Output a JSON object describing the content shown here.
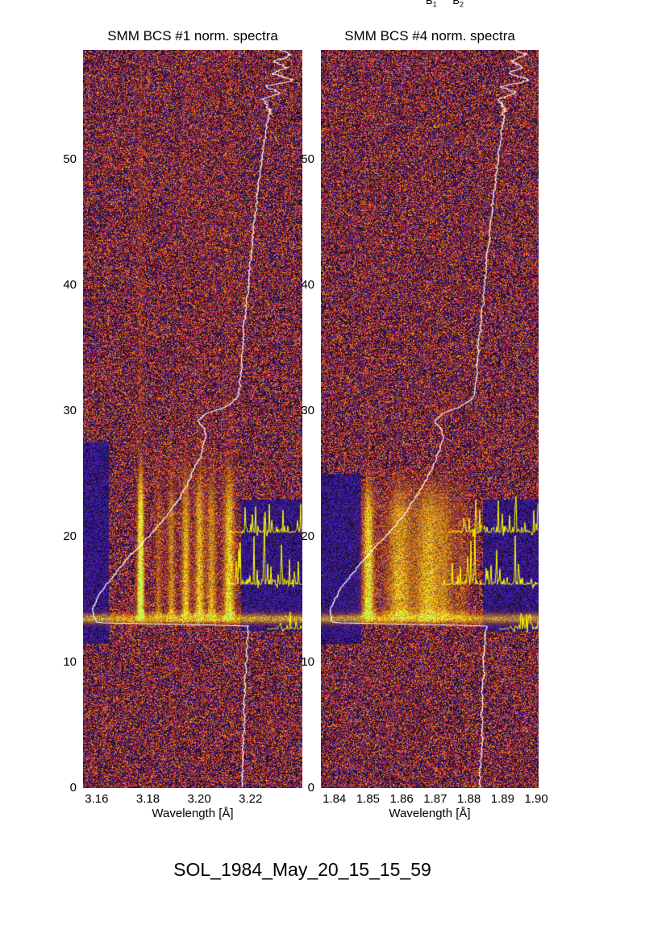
{
  "figure": {
    "caption": "SOL_1984_May_20_15_15_59",
    "top_labels": [
      {
        "base": "B",
        "sub": "1"
      },
      {
        "base": "B",
        "sub": "2"
      }
    ]
  },
  "chart_data": [
    {
      "type": "heatmap",
      "title": "SMM BCS #1 norm. spectra",
      "xlabel": "Wavelength [Å]",
      "xlim": [
        3.1547,
        3.2402
      ],
      "xticks": [
        {
          "label": "3.16",
          "value": 3.16
        },
        {
          "label": "3.18",
          "value": 3.18
        },
        {
          "label": "3.20",
          "value": 3.2
        },
        {
          "label": "3.22",
          "value": 3.22
        }
      ],
      "ylim": [
        0,
        58.7
      ],
      "yticks": [
        0,
        10,
        20,
        30,
        40,
        50
      ],
      "colormap": {
        "background_levels": [
          "#000012",
          "#2a1ea8",
          "#c03020",
          "#ff8c14"
        ],
        "line_core": "#aaff55",
        "lightcurve_overlay": "#ffffff",
        "spectra_overlay": "#ffff00"
      },
      "flare": {
        "onset_time": 13.1,
        "peak_time": 14.0,
        "decay_end_time": 28,
        "band_time_range": [
          13.1,
          13.9
        ],
        "band_strength": 0.7
      },
      "emission_lines": [
        {
          "wavelength": 3.177,
          "width": 0.0013,
          "strength": 1.35,
          "persist": 0.14
        },
        {
          "wavelength": 3.184,
          "width": 0.0013,
          "strength": 0.4,
          "persist": 0.05
        },
        {
          "wavelength": 3.189,
          "width": 0.0015,
          "strength": 0.55,
          "persist": 0.07
        },
        {
          "wavelength": 3.1946,
          "width": 0.0016,
          "strength": 0.75,
          "persist": 0.09
        },
        {
          "wavelength": 3.2,
          "width": 0.0018,
          "strength": 0.78,
          "persist": 0.09
        },
        {
          "wavelength": 3.2047,
          "width": 0.0018,
          "strength": 0.65,
          "persist": 0.07
        },
        {
          "wavelength": 3.2115,
          "width": 0.0022,
          "strength": 0.95,
          "persist": 0.1
        },
        {
          "wavelength": 3.196,
          "width": 0.016,
          "strength": 0.1,
          "persist": 0
        }
      ],
      "blue_regions": [
        {
          "lam": [
            3.1547,
            3.1645
          ],
          "t": [
            11.5,
            27.5
          ]
        },
        {
          "lam": [
            3.216,
            3.2402
          ],
          "t": [
            12.5,
            23.0
          ]
        }
      ],
      "lightcurve_trace": {
        "points": [
          [
            0,
            0.725
          ],
          [
            3,
            0.73
          ],
          [
            6,
            0.735
          ],
          [
            9,
            0.74
          ],
          [
            12,
            0.75
          ],
          [
            12.9,
            0.755
          ],
          [
            13.15,
            0.06
          ],
          [
            14.2,
            0.045
          ],
          [
            15,
            0.065
          ],
          [
            16,
            0.1
          ],
          [
            17,
            0.145
          ],
          [
            18,
            0.19
          ],
          [
            19,
            0.245
          ],
          [
            20,
            0.3
          ],
          [
            21,
            0.35
          ],
          [
            22,
            0.4
          ],
          [
            23,
            0.435
          ],
          [
            24,
            0.47
          ],
          [
            25,
            0.5
          ],
          [
            26,
            0.525
          ],
          [
            27,
            0.548
          ],
          [
            28,
            0.562
          ],
          [
            28.6,
            0.555
          ],
          [
            29.2,
            0.528
          ],
          [
            29.8,
            0.56
          ],
          [
            30.3,
            0.645
          ],
          [
            31,
            0.7
          ],
          [
            32,
            0.715
          ],
          [
            34,
            0.722
          ],
          [
            36,
            0.73
          ],
          [
            38,
            0.742
          ],
          [
            40,
            0.754
          ],
          [
            42,
            0.764
          ],
          [
            44,
            0.776
          ],
          [
            46,
            0.788
          ],
          [
            48,
            0.8
          ],
          [
            50,
            0.815
          ],
          [
            52,
            0.832
          ],
          [
            54,
            0.85
          ],
          [
            54.8,
            0.82
          ],
          [
            55.3,
            0.9
          ],
          [
            55.8,
            0.83
          ],
          [
            56.3,
            0.96
          ],
          [
            56.8,
            0.86
          ],
          [
            57.3,
            0.93
          ],
          [
            57.8,
            0.87
          ],
          [
            58.3,
            0.95
          ],
          [
            58.7,
            0.9
          ]
        ]
      },
      "spectra_traces": {
        "baselines": [
          {
            "t": 12.65,
            "x_start_frac": 0.84,
            "max_spike": 1.2
          },
          {
            "t": 16.2,
            "x_start_frac": 0.66,
            "max_spike": 5.8
          },
          {
            "t": 20.35,
            "x_start_frac": 0.67,
            "max_spike": 3.0
          }
        ]
      },
      "noise_seed": 101
    },
    {
      "type": "heatmap",
      "title": "SMM BCS #4 norm. spectra",
      "xlabel": "Wavelength [Å]",
      "xlim": [
        1.836,
        1.9007
      ],
      "xticks": [
        {
          "label": "1.84",
          "value": 1.84
        },
        {
          "label": "1.85",
          "value": 1.85
        },
        {
          "label": "1.86",
          "value": 1.86
        },
        {
          "label": "1.87",
          "value": 1.87
        },
        {
          "label": "1.88",
          "value": 1.88
        },
        {
          "label": "1.89",
          "value": 1.89
        },
        {
          "label": "1.90",
          "value": 1.9
        }
      ],
      "ylim": [
        0,
        58.7
      ],
      "yticks": [
        0,
        10,
        20,
        30,
        40,
        50
      ],
      "colormap": {
        "background_levels": [
          "#000012",
          "#2a1ea8",
          "#c03020",
          "#ff8c14"
        ],
        "line_core": "#ffd040",
        "lightcurve_overlay": "#ffffff",
        "spectra_overlay": "#ffff00"
      },
      "flare": {
        "onset_time": 13.1,
        "peak_time": 14.0,
        "decay_end_time": 26,
        "band_time_range": [
          13.1,
          13.9
        ],
        "band_strength": 0.65
      },
      "emission_lines": [
        {
          "wavelength": 1.85,
          "width": 0.0016,
          "strength": 1.0,
          "persist": 0.05
        },
        {
          "wavelength": 1.859,
          "width": 0.003,
          "strength": 0.45,
          "persist": 0.03
        },
        {
          "wavelength": 1.8625,
          "width": 0.0105,
          "strength": 0.38,
          "persist": 0
        },
        {
          "wavelength": 1.868,
          "width": 0.0032,
          "strength": 0.5,
          "persist": 0.04
        },
        {
          "wavelength": 1.873,
          "width": 0.0028,
          "strength": 0.4,
          "persist": 0.03
        },
        {
          "wavelength": 1.878,
          "width": 0.002,
          "strength": 0.3,
          "persist": 0.02
        }
      ],
      "blue_regions": [
        {
          "lam": [
            1.836,
            1.8478
          ],
          "t": [
            11.5,
            25.0
          ]
        },
        {
          "lam": [
            1.884,
            1.9007
          ],
          "t": [
            12.5,
            23.0
          ]
        }
      ],
      "lightcurve_trace": {
        "points": [
          [
            0,
            0.73
          ],
          [
            3,
            0.735
          ],
          [
            6,
            0.74
          ],
          [
            9,
            0.745
          ],
          [
            12,
            0.752
          ],
          [
            12.9,
            0.757
          ],
          [
            13.15,
            0.055
          ],
          [
            14.2,
            0.042
          ],
          [
            15,
            0.062
          ],
          [
            16,
            0.098
          ],
          [
            17,
            0.142
          ],
          [
            18,
            0.188
          ],
          [
            19,
            0.24
          ],
          [
            20,
            0.295
          ],
          [
            21,
            0.345
          ],
          [
            22,
            0.395
          ],
          [
            23,
            0.432
          ],
          [
            24,
            0.466
          ],
          [
            25,
            0.497
          ],
          [
            26,
            0.522
          ],
          [
            27,
            0.545
          ],
          [
            28,
            0.56
          ],
          [
            28.6,
            0.552
          ],
          [
            29.2,
            0.525
          ],
          [
            29.8,
            0.558
          ],
          [
            30.3,
            0.64
          ],
          [
            31,
            0.697
          ],
          [
            32,
            0.712
          ],
          [
            34,
            0.72
          ],
          [
            36,
            0.728
          ],
          [
            38,
            0.74
          ],
          [
            40,
            0.752
          ],
          [
            42,
            0.762
          ],
          [
            44,
            0.774
          ],
          [
            46,
            0.786
          ],
          [
            48,
            0.798
          ],
          [
            50,
            0.813
          ],
          [
            52,
            0.83
          ],
          [
            54,
            0.848
          ],
          [
            54.8,
            0.818
          ],
          [
            55.3,
            0.898
          ],
          [
            55.8,
            0.828
          ],
          [
            56.3,
            0.958
          ],
          [
            56.8,
            0.858
          ],
          [
            57.3,
            0.928
          ],
          [
            57.8,
            0.868
          ],
          [
            58.3,
            0.948
          ],
          [
            58.7,
            0.898
          ]
        ]
      },
      "spectra_traces": {
        "baselines": [
          {
            "t": 12.65,
            "x_start_frac": 0.82,
            "max_spike": 1.1
          },
          {
            "t": 16.2,
            "x_start_frac": 0.56,
            "max_spike": 5.8
          },
          {
            "t": 20.35,
            "x_start_frac": 0.58,
            "max_spike": 3.2
          }
        ]
      },
      "noise_seed": 202
    }
  ]
}
